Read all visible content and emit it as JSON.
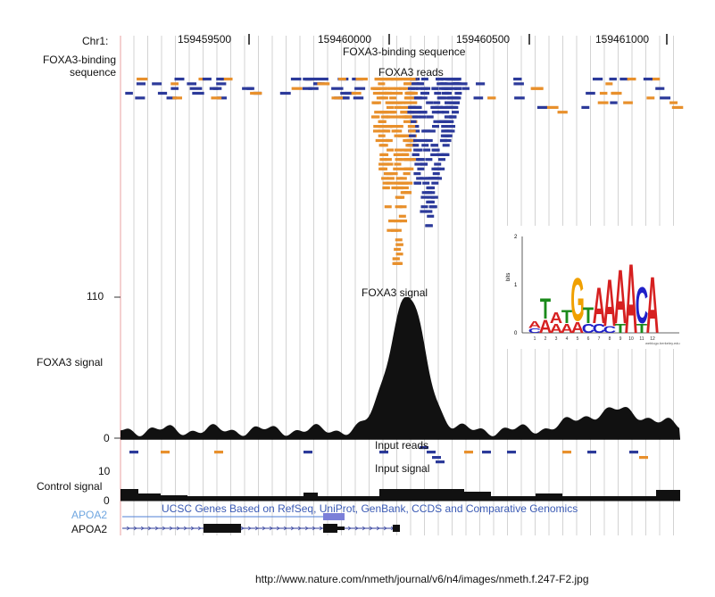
{
  "header": {
    "chr_label": "Chr1:",
    "positions": [
      "159459500",
      "159460000",
      "159460500",
      "159461000"
    ]
  },
  "tracks": {
    "foxa3_binding": {
      "left_label": "FOXA3-binding sequence",
      "title": "FOXA3-binding sequence"
    },
    "foxa3_reads": {
      "title": "FOXA3 reads"
    },
    "foxa3_signal": {
      "left_label": "FOXA3 signal",
      "title": "FOXA3 signal",
      "ymax": "110",
      "ymin": "0"
    },
    "input_reads": {
      "title": "Input reads"
    },
    "input_signal": {
      "title": "Input signal",
      "ymax": "10",
      "ymin": "0",
      "left_label": "Control signal"
    },
    "genes": {
      "title": "UCSC Genes Based on RefSeq, UniProt, GenBank, CCDS and Comparative Genomics",
      "gene1": "APOA2",
      "gene2": "APOA2"
    }
  },
  "motif": {
    "ylabel": "bits",
    "yticks": [
      "0",
      "1",
      "2"
    ],
    "positions": [
      "1",
      "2",
      "3",
      "4",
      "5",
      "6",
      "7",
      "8",
      "9",
      "10",
      "11",
      "12"
    ],
    "letters": [
      "G",
      "A",
      "T",
      "A",
      "G",
      "T",
      "A",
      "A",
      "A",
      "C",
      "A"
    ],
    "footnote": "weblogo.berkeley.edu"
  },
  "colors": {
    "forward_read": "#e8902c",
    "reverse_read": "#2c3a9a",
    "signal": "#111111",
    "gene_highlight": "#4f7fd6"
  },
  "footer": {
    "url": "http://www.nature.com/nmeth/journal/v6/n4/images/nmeth.f.247-F2.jpg"
  }
}
